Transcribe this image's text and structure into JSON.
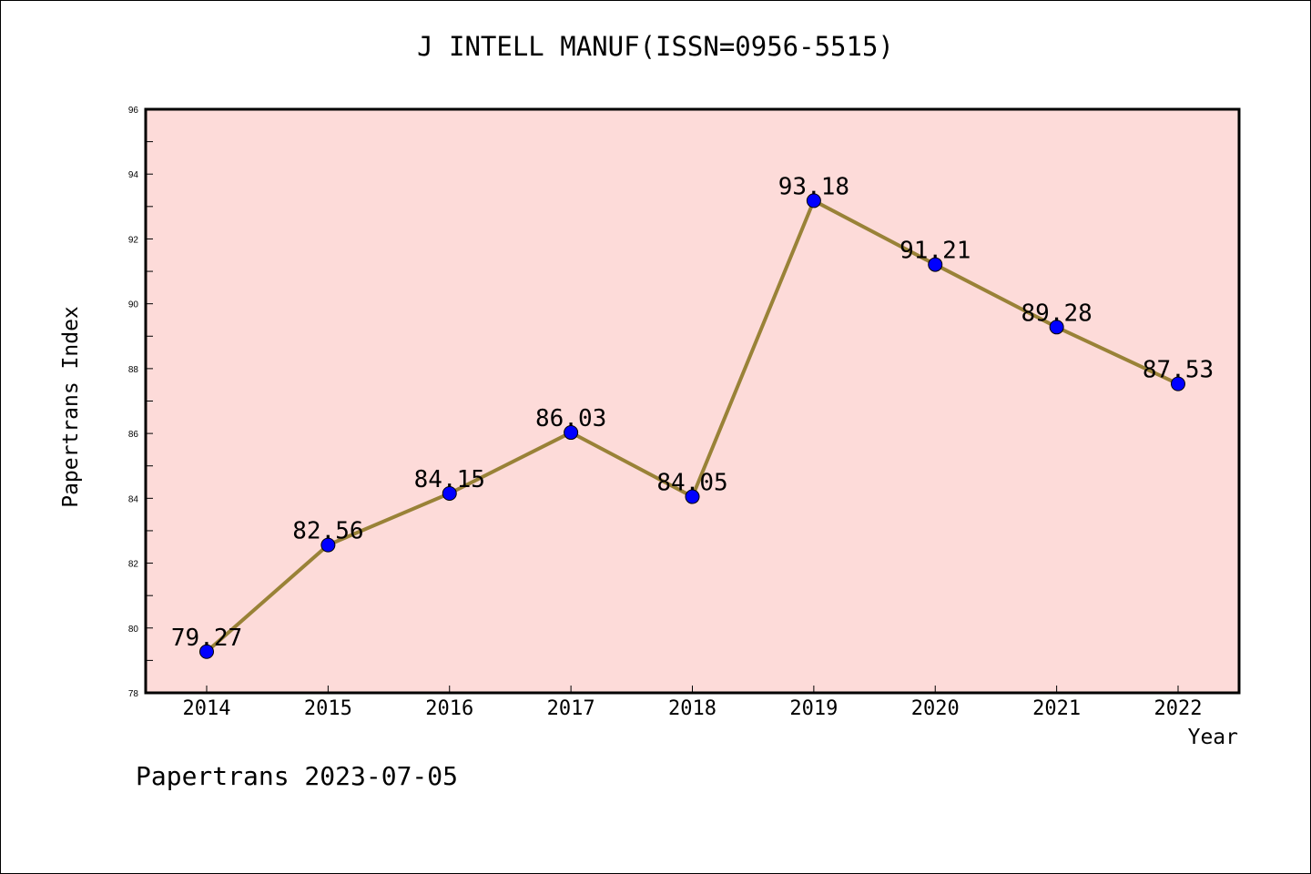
{
  "title": "J INTELL MANUF(ISSN=0956-5515)",
  "footer": "Papertrans 2023-07-05",
  "colors": {
    "plot_background": "#fddbd9",
    "line": "#998237",
    "marker": "#0000ff"
  },
  "chart_data": {
    "type": "line",
    "title": "J INTELL MANUF(ISSN=0956-5515)",
    "xlabel": "Year",
    "ylabel": "Papertrans Index",
    "categories": [
      "2014",
      "2015",
      "2016",
      "2017",
      "2018",
      "2019",
      "2020",
      "2021",
      "2022"
    ],
    "values": [
      79.27,
      82.56,
      84.15,
      86.03,
      84.05,
      93.18,
      91.21,
      89.28,
      87.53
    ],
    "data_labels": [
      "79.27",
      "82.56",
      "84.15",
      "86.03",
      "84.05",
      "93.18",
      "91.21",
      "89.28",
      "87.53"
    ],
    "ylim": [
      78,
      96
    ],
    "yticks": [
      78,
      80,
      82,
      84,
      86,
      88,
      90,
      92,
      94,
      96
    ],
    "grid": false,
    "legend": "none"
  }
}
